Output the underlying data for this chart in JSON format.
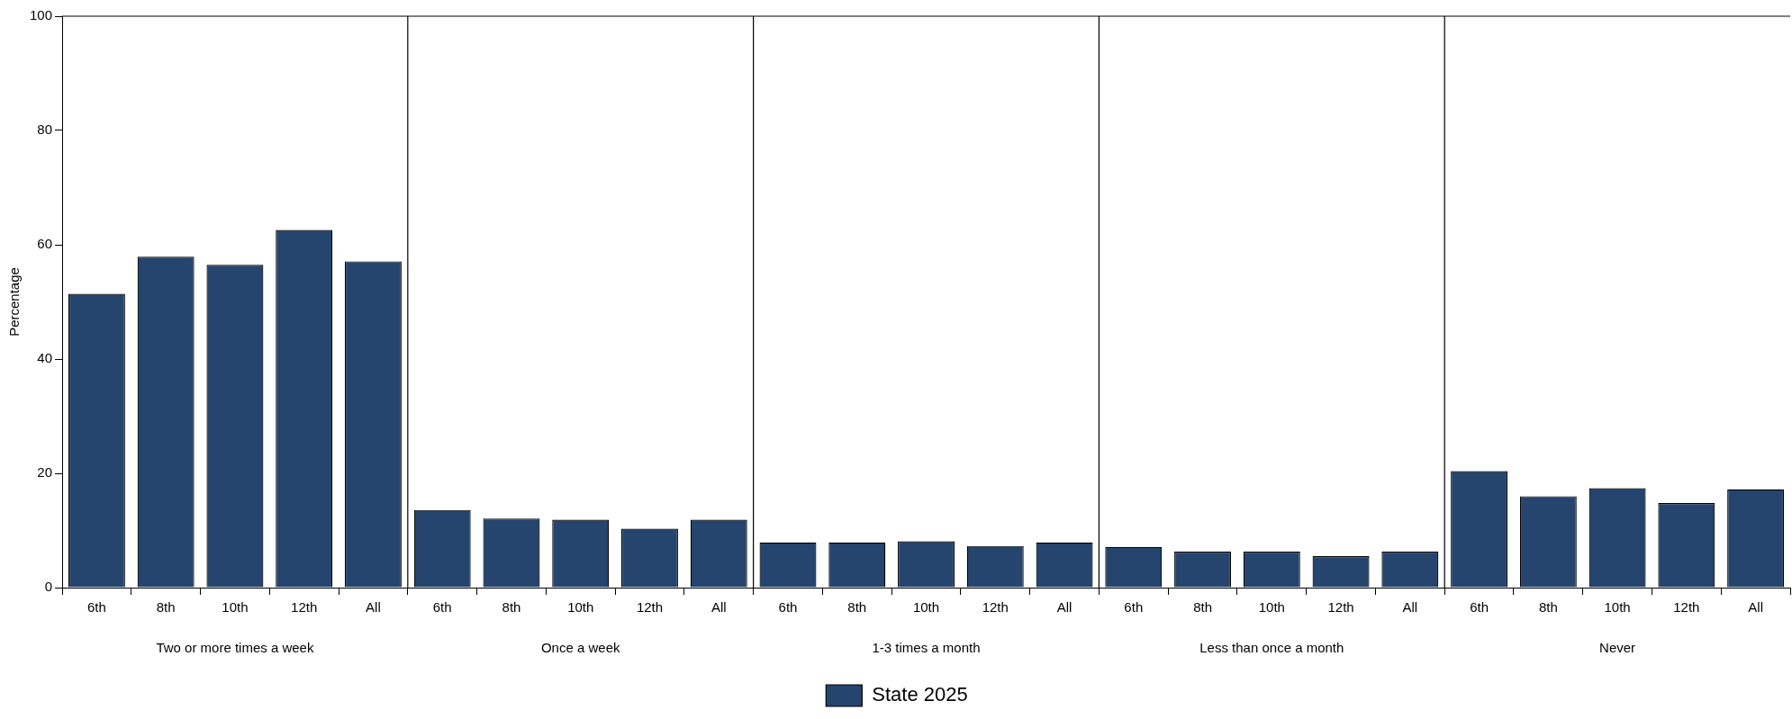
{
  "chart_data": {
    "type": "bar",
    "ylabel": "Percentage",
    "categories": [
      "6th",
      "8th",
      "10th",
      "12th",
      "All",
      "6th",
      "8th",
      "10th",
      "12th",
      "All",
      "6th",
      "8th",
      "10th",
      "12th",
      "All",
      "6th",
      "8th",
      "10th",
      "12th",
      "All",
      "6th",
      "8th",
      "10th",
      "12th",
      "All"
    ],
    "annotations": [
      "Two or more times a week",
      "Once a week",
      "1-3 times a month",
      "Less than once a month",
      "Never"
    ],
    "series": [
      {
        "name": "State 2025",
        "color": "#25446e",
        "values": [
          51.4,
          57.9,
          56.5,
          62.6,
          57.1,
          13.6,
          12.1,
          11.9,
          10.3,
          11.9,
          7.9,
          7.9,
          8.1,
          7.3,
          7.9,
          7.1,
          6.3,
          6.3,
          5.5,
          6.3,
          20.4,
          16.0,
          17.4,
          14.8,
          17.2
        ]
      }
    ],
    "ylim": [
      0,
      100
    ],
    "yticks": [
      0,
      20,
      40,
      60,
      80,
      100
    ],
    "legend": "bottom"
  }
}
